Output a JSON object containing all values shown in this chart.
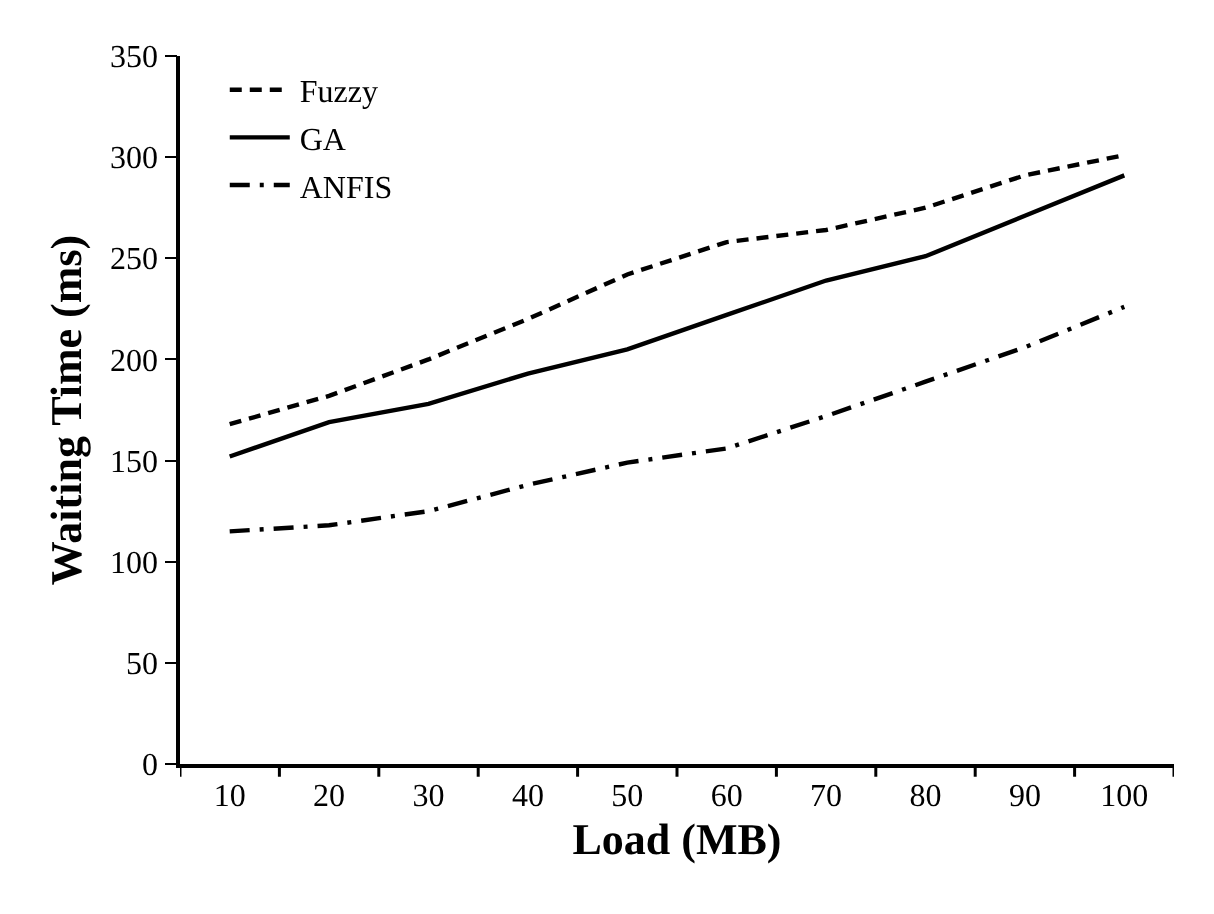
{
  "chart_data": {
    "type": "line",
    "xlabel": "Load (MB)",
    "ylabel": "Waiting Time (ms)",
    "categories": [
      "10",
      "20",
      "30",
      "40",
      "50",
      "60",
      "70",
      "80",
      "90",
      "100"
    ],
    "series": [
      {
        "name": "Fuzzy",
        "color": "#000000",
        "line_style": "dashed",
        "values": [
          168,
          182,
          200,
          220,
          242,
          258,
          264,
          275,
          291,
          301
        ]
      },
      {
        "name": "GA",
        "color": "#000000",
        "line_style": "solid",
        "values": [
          152,
          169,
          178,
          193,
          205,
          222,
          239,
          251,
          271,
          291
        ]
      },
      {
        "name": "ANFIS",
        "color": "#000000",
        "line_style": "dashdot",
        "values": [
          115,
          118,
          125,
          138,
          149,
          156,
          172,
          189,
          206,
          226
        ]
      }
    ],
    "ylim": [
      0,
      350
    ],
    "yticks": [
      0,
      50,
      100,
      150,
      200,
      250,
      300,
      350
    ],
    "legend": "top left",
    "marker": "none"
  }
}
